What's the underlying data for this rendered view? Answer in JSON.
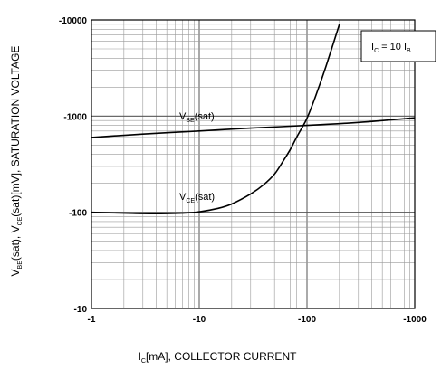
{
  "chart_data": {
    "type": "line",
    "title": "",
    "xlabel": {
      "main": "I",
      "sub": "C",
      "rest": "[mA], COLLECTOR CURRENT"
    },
    "ylabel": {
      "p1": "V",
      "s1": "BE",
      "p2": "(sat),  V",
      "s2": "CE",
      "p3": "(sat)[mV], SATURATION VOLTAGE"
    },
    "x_scale": "log",
    "y_scale": "log",
    "xlim": [
      -1,
      -1000
    ],
    "ylim": [
      -10,
      -10000
    ],
    "x_ticks": [
      -1,
      -10,
      -100,
      -1000
    ],
    "x_tick_labels": [
      "-1",
      "-10",
      "-100",
      "-1000"
    ],
    "y_ticks": [
      -10,
      -100,
      -1000,
      -10000
    ],
    "y_tick_labels": [
      "-10",
      "-100",
      "-1000",
      "-10000"
    ],
    "grid": true,
    "annotation": {
      "p1": "I",
      "s1": "C",
      "p2": " = 10 I",
      "s2": "B"
    },
    "series": [
      {
        "name": {
          "p": "V",
          "s": "BE",
          "rest": "(sat)"
        },
        "x": [
          -1,
          -3,
          -10,
          -30,
          -100,
          -300,
          -1000
        ],
        "y": [
          -600,
          -650,
          -700,
          -750,
          -800,
          -860,
          -960
        ]
      },
      {
        "name": {
          "p": "V",
          "s": "CE",
          "rest": "(sat)"
        },
        "x": [
          -1,
          -2,
          -3,
          -5,
          -7,
          -10,
          -15,
          -20,
          -30,
          -40,
          -50,
          -60,
          -70,
          -80,
          -90,
          -100,
          -120,
          -150,
          -200
        ],
        "y": [
          -100,
          -98,
          -97,
          -97,
          -98,
          -101,
          -110,
          -122,
          -155,
          -195,
          -250,
          -340,
          -450,
          -600,
          -760,
          -950,
          -1600,
          -3300,
          -9000
        ]
      }
    ]
  }
}
